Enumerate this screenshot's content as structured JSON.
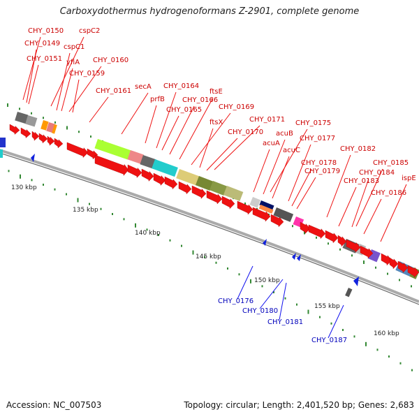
{
  "title": "Carboxydothermus hydrogenoformans Z-2901, complete genome",
  "footer": {
    "accession": "Accession: NC_007503",
    "summary": "Topology: circular; Length: 2,401,520 bp; Genes: 2,683"
  },
  "scale_labels": [
    "130 kbp",
    "135 kbp",
    "140 kbp",
    "145 kbp",
    "150 kbp",
    "155 kbp",
    "160 kbp"
  ],
  "forward_labels": [
    "CHY_0150",
    "CHY_0149",
    "cspC2",
    "cspC1",
    "CHY_0151",
    "yfiA",
    "CHY_0160",
    "CHY_0159",
    "CHY_0161",
    "secA",
    "prfB",
    "CHY_0164",
    "CHY_0166",
    "CHY_0165",
    "ftsE",
    "CHY_0169",
    "ftsX",
    "CHY_0171",
    "CHY_0170",
    "CHY_0175",
    "acuB",
    "acuA",
    "acuC",
    "CHY_0177",
    "CHY_0182",
    "CHY_0178",
    "CHY_0179",
    "CHY_0185",
    "CHY_0184",
    "CHY_0183",
    "ispE",
    "CHY_0186"
  ],
  "reverse_labels": [
    "CHY_0176",
    "CHY_0180",
    "CHY_0181",
    "CHY_0187"
  ],
  "colors": {
    "cds": "#ee1111",
    "reverse_cds": "#1122dd",
    "backbone": "#999999",
    "gc_tick": "#338833"
  }
}
